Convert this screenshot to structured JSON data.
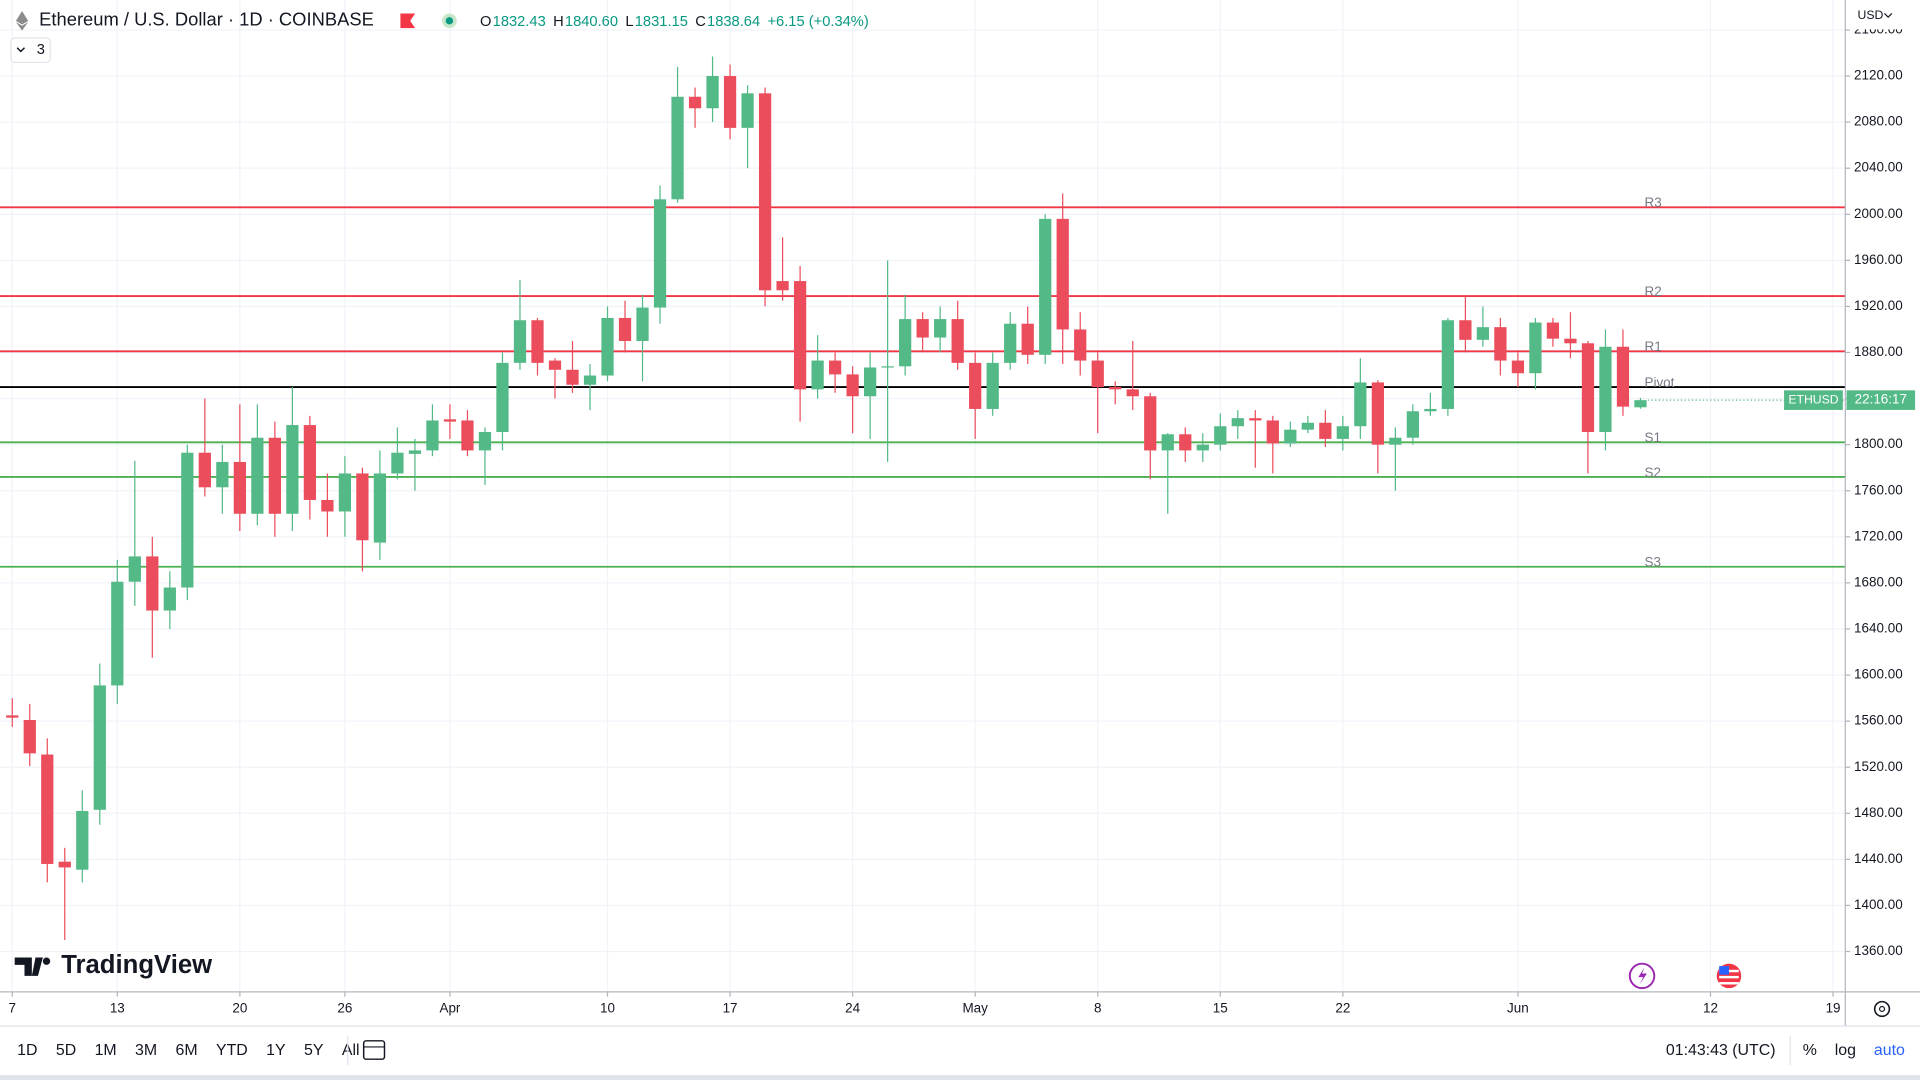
{
  "chart_data": {
    "type": "candlestick",
    "title": "Ethereum / U.S. Dollar · 1D · COINBASE",
    "header": {
      "labels": [
        "O",
        "H",
        "L",
        "C"
      ],
      "values": [
        "1832.43",
        "1840.60",
        "1831.15",
        "1838.64"
      ],
      "change": "+6.15 (+0.34%)"
    },
    "indicator_count": "3",
    "brand": "TradingView",
    "currency": "USD",
    "symbol_tag": "ETHUSD",
    "countdown": "22:16:17",
    "up_color": "#53b987",
    "down_color": "#eb4d5c",
    "open": [
      1565,
      1561,
      1531,
      1438,
      1431,
      1483,
      1591,
      1681,
      1703,
      1656,
      1676,
      1793,
      1763,
      1785,
      1740,
      1806,
      1740,
      1817,
      1752,
      1742,
      1775,
      1715,
      1775,
      1792,
      1795,
      1822,
      1821,
      1795,
      1811,
      1871,
      1908,
      1873,
      1865,
      1852,
      1860,
      1910,
      1890,
      1919,
      2013,
      2102,
      2092,
      2120,
      2075,
      2105,
      1942,
      1942,
      1848,
      1873,
      1861,
      1842,
      1867,
      1868,
      1909,
      1893,
      1909,
      1871,
      1831,
      1871,
      1905,
      1878,
      1996,
      1900,
      1873,
      1850,
      1848,
      1842,
      1795,
      1809,
      1795,
      1800,
      1816,
      1823,
      1821,
      1801,
      1813,
      1819,
      1805,
      1816,
      1854,
      1800,
      1806,
      1829,
      1831,
      1908,
      1891,
      1902,
      1873,
      1862,
      1906,
      1892,
      1888,
      1811,
      1885,
      1832.43
    ],
    "high": [
      1580,
      1575,
      1545,
      1450,
      1500,
      1610,
      1700,
      1786,
      1720,
      1690,
      1800,
      1840,
      1800,
      1835,
      1835,
      1820,
      1850,
      1825,
      1775,
      1790,
      1780,
      1795,
      1815,
      1805,
      1835,
      1835,
      1830,
      1815,
      1880,
      1943,
      1910,
      1875,
      1890,
      1870,
      1920,
      1925,
      1930,
      2025,
      2128,
      2110,
      2137,
      2130,
      2112,
      2110,
      1980,
      1955,
      1895,
      1880,
      1868,
      1880,
      1960,
      1930,
      1915,
      1920,
      1925,
      1880,
      1880,
      1915,
      1920,
      2000,
      2018,
      1915,
      1880,
      1855,
      1890,
      1845,
      1810,
      1815,
      1810,
      1827,
      1830,
      1830,
      1825,
      1820,
      1825,
      1830,
      1825,
      1875,
      1856,
      1815,
      1835,
      1845,
      1910,
      1930,
      1920,
      1910,
      1880,
      1910,
      1910,
      1915,
      1890,
      1900,
      1900,
      1840.6
    ],
    "low": [
      1555,
      1521,
      1420,
      1370,
      1420,
      1470,
      1575,
      1660,
      1615,
      1640,
      1665,
      1755,
      1740,
      1725,
      1730,
      1720,
      1725,
      1735,
      1720,
      1720,
      1690,
      1700,
      1770,
      1760,
      1790,
      1805,
      1790,
      1765,
      1795,
      1865,
      1860,
      1840,
      1845,
      1830,
      1855,
      1880,
      1855,
      1905,
      2010,
      2075,
      2080,
      2065,
      2040,
      1920,
      1925,
      1820,
      1840,
      1845,
      1810,
      1805,
      1785,
      1860,
      1880,
      1880,
      1865,
      1805,
      1825,
      1865,
      1870,
      1870,
      1870,
      1860,
      1810,
      1835,
      1830,
      1770,
      1740,
      1785,
      1785,
      1795,
      1805,
      1780,
      1775,
      1798,
      1810,
      1798,
      1795,
      1805,
      1775,
      1760,
      1800,
      1825,
      1825,
      1880,
      1885,
      1860,
      1850,
      1848,
      1885,
      1875,
      1775,
      1795,
      1825,
      1831.15
    ],
    "close": [
      1563,
      1532,
      1436,
      1433,
      1482,
      1591,
      1681,
      1703,
      1656,
      1676,
      1793,
      1763,
      1785,
      1740,
      1806,
      1740,
      1817,
      1752,
      1742,
      1775,
      1717,
      1775,
      1793,
      1795,
      1821,
      1820,
      1795,
      1811,
      1871,
      1908,
      1871,
      1865,
      1852,
      1860,
      1910,
      1890,
      1919,
      2013,
      2102,
      2092,
      2120,
      2075,
      2105,
      1934,
      1934,
      1848,
      1873,
      1861,
      1842,
      1867,
      1868,
      1909,
      1893,
      1909,
      1871,
      1831,
      1871,
      1905,
      1878,
      1996,
      1900,
      1873,
      1850,
      1848,
      1842,
      1795,
      1809,
      1795,
      1800,
      1816,
      1823,
      1821,
      1801,
      1813,
      1819,
      1805,
      1816,
      1854,
      1800,
      1806,
      1829,
      1831,
      1908,
      1891,
      1902,
      1873,
      1862,
      1906,
      1892,
      1888,
      1811,
      1885,
      1833,
      1838.64
    ],
    "levels": [
      {
        "name": "R3",
        "value": 2006,
        "color": "#f23645"
      },
      {
        "name": "R2",
        "value": 1929,
        "color": "#f23645"
      },
      {
        "name": "R1",
        "value": 1881,
        "color": "#f23645"
      },
      {
        "name": "Pivot",
        "value": 1850,
        "color": "#000000"
      },
      {
        "name": "S1",
        "value": 1802,
        "color": "#4caf50"
      },
      {
        "name": "S2",
        "value": 1772,
        "color": "#4caf50"
      },
      {
        "name": "S3",
        "value": 1694,
        "color": "#4caf50"
      }
    ],
    "xlim": [
      -0.7,
      104.7
    ],
    "xticks": [
      {
        "value": 0,
        "label": "7"
      },
      {
        "value": 6,
        "label": "13"
      },
      {
        "value": 13,
        "label": "20"
      },
      {
        "value": 19,
        "label": "26"
      },
      {
        "value": 25,
        "label": "Apr"
      },
      {
        "value": 34,
        "label": "10"
      },
      {
        "value": 41,
        "label": "17"
      },
      {
        "value": 48,
        "label": "24"
      },
      {
        "value": 55,
        "label": "May"
      },
      {
        "value": 62,
        "label": "8"
      },
      {
        "value": 69,
        "label": "15"
      },
      {
        "value": 76,
        "label": "22"
      },
      {
        "value": 86,
        "label": "Jun"
      },
      {
        "value": 97,
        "label": "12"
      },
      {
        "value": 104,
        "label": "19"
      }
    ],
    "ylim": [
      1325,
      2186
    ],
    "yticks": [
      {
        "value": 1360,
        "label": "1360.00"
      },
      {
        "value": 1400,
        "label": "1400.00"
      },
      {
        "value": 1440,
        "label": "1440.00"
      },
      {
        "value": 1480,
        "label": "1480.00"
      },
      {
        "value": 1520,
        "label": "1520.00"
      },
      {
        "value": 1560,
        "label": "1560.00"
      },
      {
        "value": 1600,
        "label": "1600.00"
      },
      {
        "value": 1640,
        "label": "1640.00"
      },
      {
        "value": 1680,
        "label": "1680.00"
      },
      {
        "value": 1720,
        "label": "1720.00"
      },
      {
        "value": 1760,
        "label": "1760.00"
      },
      {
        "value": 1800,
        "label": "1800.00"
      },
      {
        "value": 1840,
        "label": "1840.00"
      },
      {
        "value": 1880,
        "label": "1880.00"
      },
      {
        "value": 1920,
        "label": "1920.00"
      },
      {
        "value": 1960,
        "label": "1960.00"
      },
      {
        "value": 2000,
        "label": "2000.00"
      },
      {
        "value": 2040,
        "label": "2040.00"
      },
      {
        "value": 2080,
        "label": "2080.00"
      },
      {
        "value": 2120,
        "label": "2120.00"
      },
      {
        "value": 2160,
        "label": "2160.00"
      }
    ],
    "grid": true,
    "toolbar": {
      "ranges": [
        "1D",
        "5D",
        "1M",
        "3M",
        "6M",
        "YTD",
        "1Y",
        "5Y",
        "All"
      ],
      "time": "01:43:43 (UTC)",
      "options": [
        "%",
        "log",
        "auto"
      ]
    }
  }
}
